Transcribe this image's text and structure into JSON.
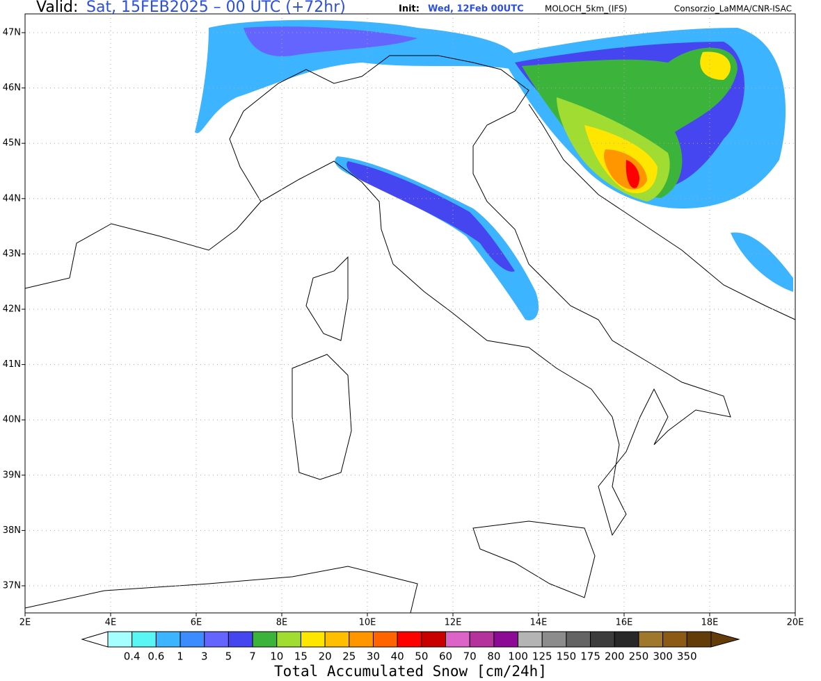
{
  "header": {
    "valid_label": "Valid:",
    "valid": "Sat, 15FEB2025 – 00 UTC (+72hr)",
    "init_label": "Init:",
    "init": "Wed, 12Feb 00UTC",
    "model": "MOLOCH_5km_(IFS)",
    "credit": "Consorzio_LaMMA/CNR-ISAC"
  },
  "axes": {
    "x_labels": [
      "2E",
      "4E",
      "6E",
      "8E",
      "10E",
      "12E",
      "14E",
      "16E",
      "18E",
      "20E"
    ],
    "y_labels": [
      "47N",
      "46N",
      "45N",
      "44N",
      "43N",
      "42N",
      "41N",
      "40N",
      "39N",
      "38N",
      "37N"
    ]
  },
  "colorbar": {
    "title": "Total Accumulated Snow [cm/24h]",
    "labels": [
      "0.4",
      "0.6",
      "1",
      "3",
      "5",
      "7",
      "10",
      "15",
      "20",
      "25",
      "30",
      "40",
      "50",
      "60",
      "70",
      "80",
      "100",
      "125",
      "150",
      "175",
      "200",
      "250",
      "300",
      "350"
    ],
    "colors": [
      "#a6ffff",
      "#5af5f5",
      "#3cb4ff",
      "#3c8cff",
      "#6464ff",
      "#4646f0",
      "#3cb43c",
      "#a0dc32",
      "#ffe600",
      "#ffbe00",
      "#ff9600",
      "#ff6400",
      "#ff0000",
      "#c80000",
      "#dc64c8",
      "#b4329b",
      "#8c0a96",
      "#b4b4b4",
      "#8c8c8c",
      "#646464",
      "#3c3c3c",
      "#282828",
      "#a0782d",
      "#8c5a14",
      "#643c0a"
    ]
  }
}
